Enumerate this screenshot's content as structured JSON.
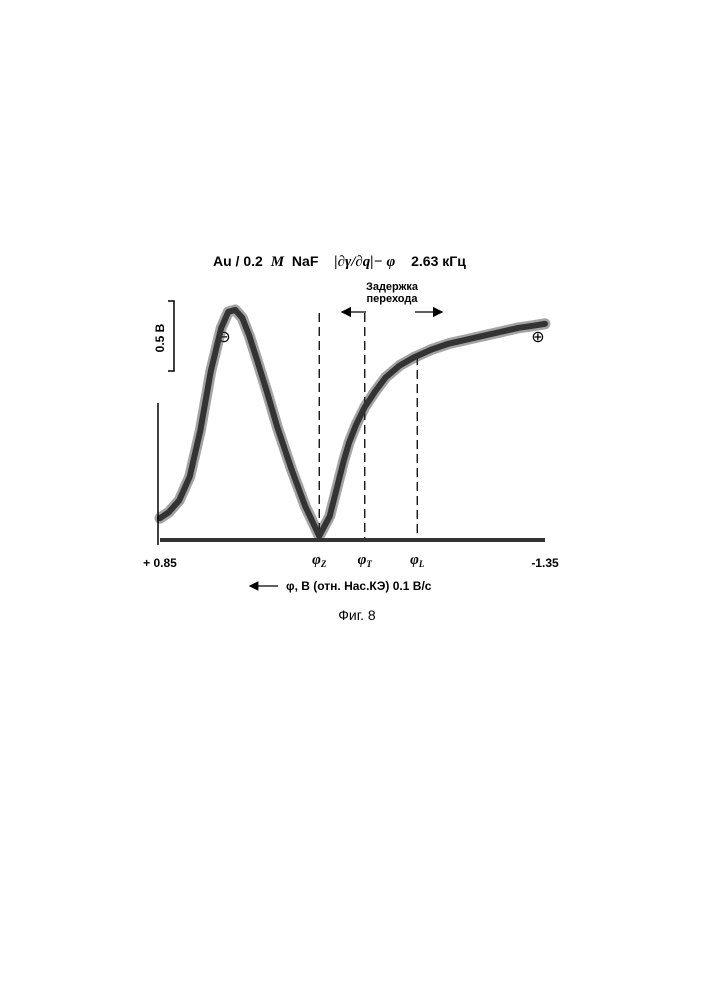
{
  "title": {
    "prefix": "Au / 0.2",
    "molar": "M",
    "salt": "NaF",
    "function": "|∂γ/∂q|− φ",
    "frequency": "2.63 кГц"
  },
  "chart_data": {
    "type": "line",
    "title": "Au / 0.2 M NaF |∂γ/∂q|− φ 2.63 кГц",
    "xlabel": "φ, В (отн. Нас.КЭ) 0.1 В/с",
    "ylabel": "",
    "x_direction": "decreasing potential to the right",
    "xlim": [
      0.85,
      -1.35
    ],
    "x_tick_labels": [
      "+ 0.85",
      "-1.35"
    ],
    "scale_bar_label": "0.5 В",
    "ylim": [
      0,
      1.2
    ],
    "series": [
      {
        "x": [
          0.85,
          0.8,
          0.74,
          0.68,
          0.62,
          0.56,
          0.5,
          0.46,
          0.42,
          0.38,
          0.34,
          0.3,
          0.24,
          0.18,
          0.1,
          0.02,
          -0.06,
          -0.12,
          -0.16,
          -0.2,
          -0.23,
          -0.27,
          -0.32,
          -0.38,
          -0.44,
          -0.52,
          -0.6,
          -0.7,
          -0.8,
          -0.9,
          -1.0,
          -1.1,
          -1.2,
          -1.28,
          -1.35
        ],
        "y": [
          0.11,
          0.14,
          0.2,
          0.32,
          0.55,
          0.85,
          1.07,
          1.15,
          1.16,
          1.12,
          1.03,
          0.92,
          0.75,
          0.57,
          0.36,
          0.17,
          0.02,
          0.12,
          0.26,
          0.4,
          0.49,
          0.58,
          0.67,
          0.75,
          0.82,
          0.88,
          0.92,
          0.96,
          0.99,
          1.01,
          1.03,
          1.05,
          1.07,
          1.08,
          1.09
        ]
      }
    ],
    "baseline": 0,
    "markers": [
      {
        "label": "φ",
        "sub": "Z",
        "x": -0.06
      },
      {
        "label": "φ",
        "sub": "T",
        "x": -0.32
      },
      {
        "label": "φ",
        "sub": "L",
        "x": -0.62
      }
    ],
    "annotations": {
      "transition_delay": [
        "Задержка",
        "перехода"
      ],
      "negative_sign": "⊖",
      "positive_sign": "⊕"
    }
  },
  "xaxis_arrow": "←",
  "caption": "Фиг. 8"
}
